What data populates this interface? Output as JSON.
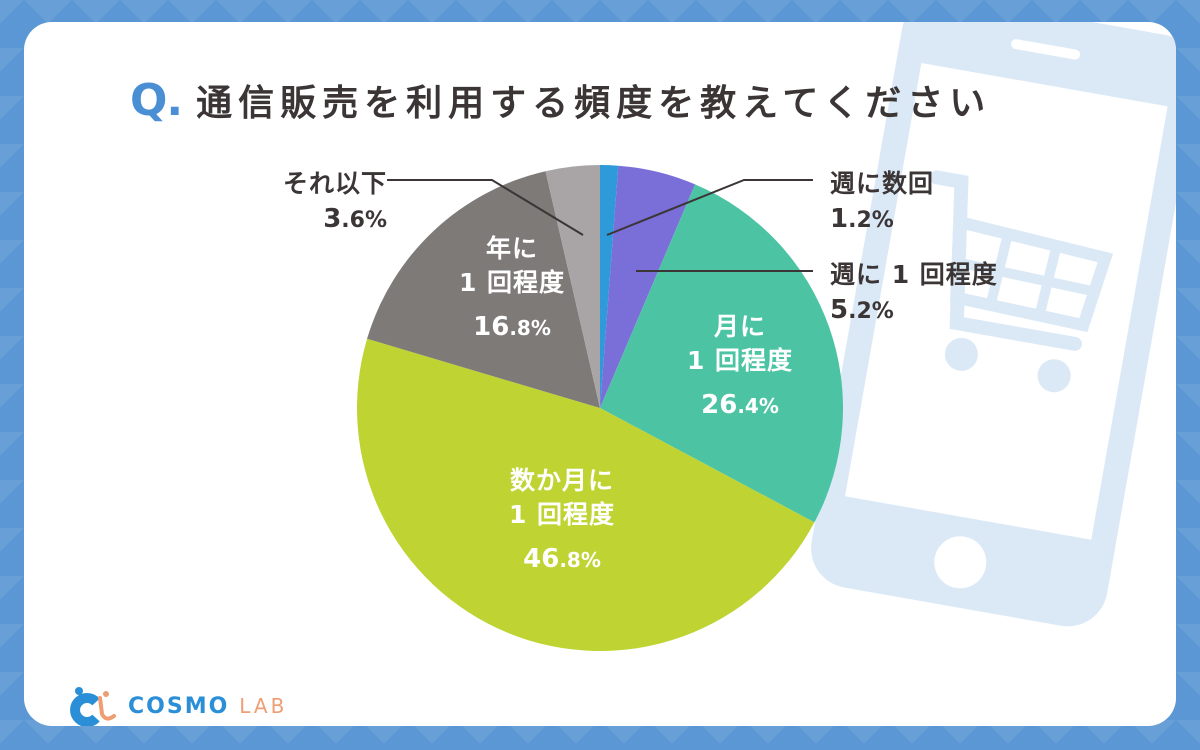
{
  "title": {
    "q_mark": "Q.",
    "text": "通信販売を利用する頻度を教えてください"
  },
  "logo": {
    "cosmo": "COSMO",
    "lab": "LAB"
  },
  "colors": {
    "background": "#5b97d4",
    "accent": "#4a8fd3",
    "text": "#3b3536",
    "phone_illustration": "#dbe9f7"
  },
  "labels": {
    "weekly_multiple": {
      "name": "週に数回",
      "int": "1",
      "dec": ".2%"
    },
    "weekly_once": {
      "name": "週に 1 回程度",
      "int": "5",
      "dec": ".2%"
    },
    "monthly": {
      "name1": "月に",
      "name2": "1 回程度",
      "int": "26",
      "dec": ".4%"
    },
    "few_months": {
      "name1": "数か月に",
      "name2": "1 回程度",
      "int": "46",
      "dec": ".8%"
    },
    "yearly": {
      "name1": "年に",
      "name2": "1 回程度",
      "int": "16",
      "dec": ".8%"
    },
    "less": {
      "name": "それ以下",
      "int": "3",
      "dec": ".6%"
    }
  },
  "chart_data": {
    "type": "pie",
    "title": "通信販売を利用する頻度を教えてください",
    "start_angle": "12 o'clock, clockwise",
    "categories": [
      "週に数回",
      "週に1回程度",
      "月に1回程度",
      "数か月に1回程度",
      "年に1回程度",
      "それ以下"
    ],
    "values": [
      1.2,
      5.2,
      26.4,
      46.8,
      16.8,
      3.6
    ],
    "unit": "%",
    "colors": [
      "#2e9ad9",
      "#7a6fd9",
      "#4cc4a3",
      "#bfd433",
      "#7e7a78",
      "#a9a5a6"
    ]
  }
}
